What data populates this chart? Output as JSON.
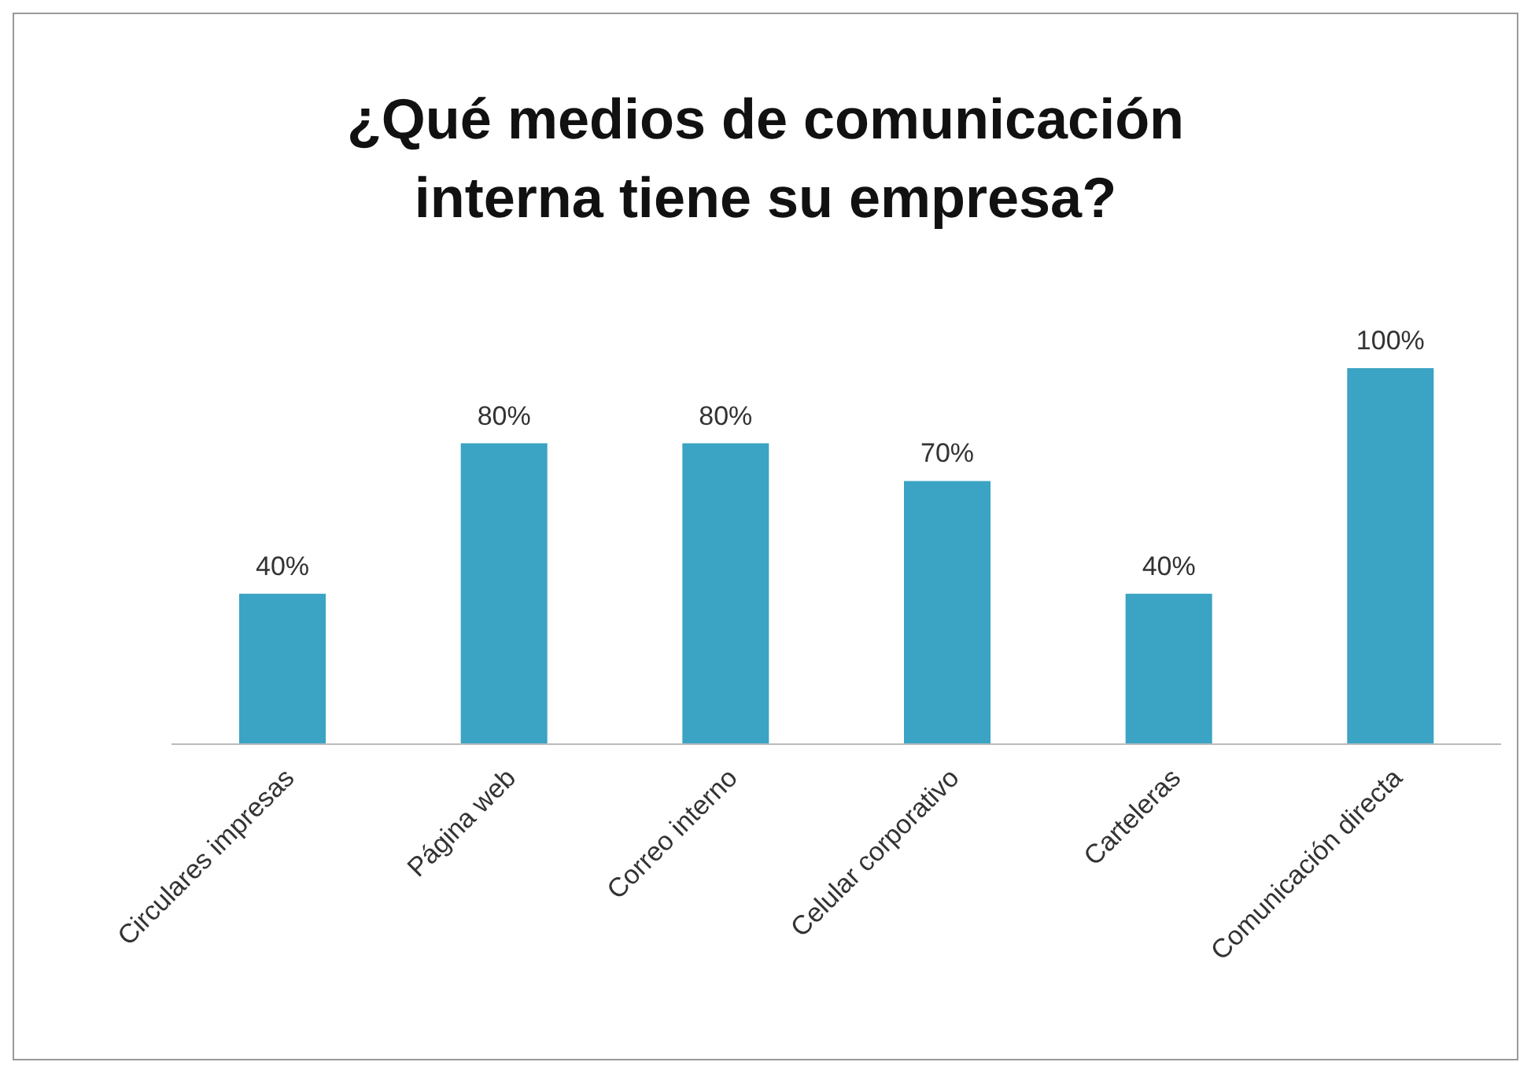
{
  "chart_data": {
    "type": "bar",
    "title": "¿Qué medios de comunicación interna tiene su empresa?",
    "categories": [
      "Circulares impresas",
      "Página web",
      "Correo interno",
      "Celular corporativo",
      "Carteleras",
      "Comunicación directa"
    ],
    "values": [
      40,
      80,
      80,
      70,
      40,
      100
    ],
    "value_labels": [
      "40%",
      "80%",
      "80%",
      "70%",
      "40%",
      "100%"
    ],
    "color": "#3ba3c3",
    "grid": false,
    "legend": false
  }
}
